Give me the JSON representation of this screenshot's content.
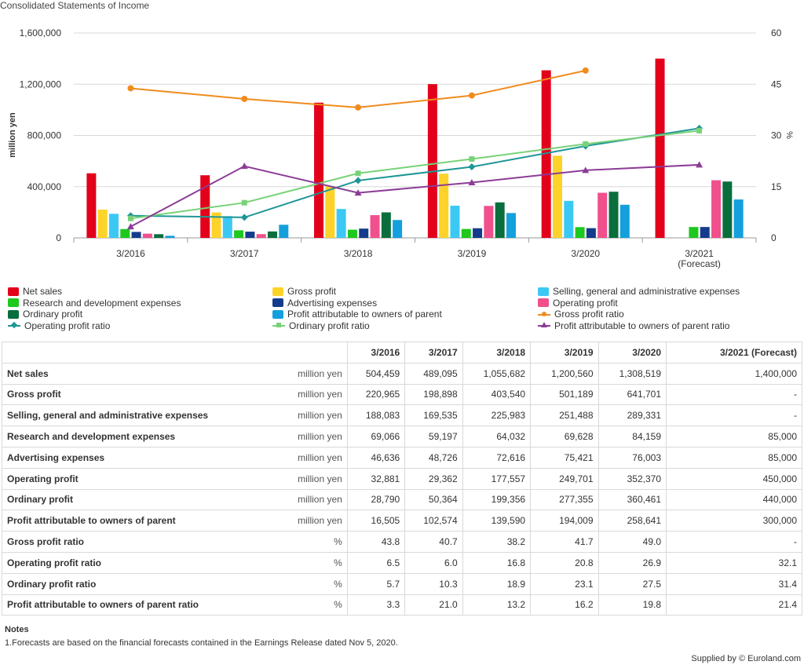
{
  "title": "Consolidated Statements of Income",
  "chart_data": {
    "type": "bar",
    "categories": [
      "3/2016",
      "3/2017",
      "3/2018",
      "3/2019",
      "3/2020",
      "3/2021 (Forecast)"
    ],
    "ylabel": "million yen",
    "y2label": "%",
    "ylim": [
      0,
      1600000
    ],
    "y2lim": [
      0,
      60
    ],
    "yticks": [
      "0",
      "400,000",
      "800,000",
      "1,200,000",
      "1,600,000"
    ],
    "y2ticks": [
      "0",
      "15",
      "30",
      "45",
      "60"
    ],
    "grid": true,
    "legend_position": "bottom",
    "bar_series": [
      {
        "name": "Net sales",
        "color": "#e3001b",
        "values": [
          504459,
          489095,
          1055682,
          1200560,
          1308519,
          1400000
        ]
      },
      {
        "name": "Gross profit",
        "color": "#fdd32a",
        "values": [
          220965,
          198898,
          403540,
          501189,
          641701,
          null
        ]
      },
      {
        "name": "Selling, general and administrative expenses",
        "color": "#3cc8f5",
        "values": [
          188083,
          169535,
          225983,
          251488,
          289331,
          null
        ]
      },
      {
        "name": "Research and development expenses",
        "color": "#1ec81e",
        "values": [
          69066,
          59197,
          64032,
          69628,
          84159,
          85000
        ]
      },
      {
        "name": "Advertising expenses",
        "color": "#143c8c",
        "values": [
          46636,
          48726,
          72616,
          75421,
          76003,
          85000
        ]
      },
      {
        "name": "Operating profit",
        "color": "#f0508c",
        "values": [
          32881,
          29362,
          177557,
          249701,
          352370,
          450000
        ]
      },
      {
        "name": "Ordinary profit",
        "color": "#0a6e3c",
        "values": [
          28790,
          50364,
          199356,
          277355,
          360461,
          440000
        ]
      },
      {
        "name": "Profit attributable to owners of parent",
        "color": "#14a0dc",
        "values": [
          16505,
          102574,
          139590,
          194009,
          258641,
          300000
        ]
      }
    ],
    "line_series": [
      {
        "name": "Gross profit ratio",
        "color": "#f08c1e",
        "marker": "circle",
        "values": [
          43.8,
          40.7,
          38.2,
          41.7,
          49.0,
          null
        ]
      },
      {
        "name": "Operating profit ratio",
        "color": "#1e9696",
        "marker": "diamond",
        "values": [
          6.5,
          6.0,
          16.8,
          20.8,
          26.9,
          32.1
        ]
      },
      {
        "name": "Ordinary profit ratio",
        "color": "#78d278",
        "marker": "square",
        "values": [
          5.7,
          10.3,
          18.9,
          23.1,
          27.5,
          31.4
        ]
      },
      {
        "name": "Profit attributable to owners of parent ratio",
        "color": "#8c3c96",
        "marker": "triangle",
        "values": [
          3.3,
          21.0,
          13.2,
          16.2,
          19.8,
          21.4
        ]
      }
    ]
  },
  "legend": [
    "Net sales",
    "Gross profit",
    "Selling, general and administrative expenses",
    "Research and development expenses",
    "Advertising expenses",
    "Operating profit",
    "Ordinary profit",
    "Profit attributable to owners of parent",
    "Gross profit ratio",
    "Operating profit ratio",
    "Ordinary profit ratio",
    "Profit attributable to owners of parent ratio"
  ],
  "table": {
    "headers": [
      "3/2016",
      "3/2017",
      "3/2018",
      "3/2019",
      "3/2020",
      "3/2021 (Forecast)"
    ],
    "rows": [
      {
        "label": "Net sales",
        "unit": "million yen",
        "values": [
          "504,459",
          "489,095",
          "1,055,682",
          "1,200,560",
          "1,308,519",
          "1,400,000"
        ]
      },
      {
        "label": "Gross profit",
        "unit": "million yen",
        "values": [
          "220,965",
          "198,898",
          "403,540",
          "501,189",
          "641,701",
          "-"
        ]
      },
      {
        "label": "Selling, general and administrative expenses",
        "unit": "million yen",
        "values": [
          "188,083",
          "169,535",
          "225,983",
          "251,488",
          "289,331",
          "-"
        ]
      },
      {
        "label": "Research and development expenses",
        "unit": "million yen",
        "values": [
          "69,066",
          "59,197",
          "64,032",
          "69,628",
          "84,159",
          "85,000"
        ]
      },
      {
        "label": "Advertising expenses",
        "unit": "million yen",
        "values": [
          "46,636",
          "48,726",
          "72,616",
          "75,421",
          "76,003",
          "85,000"
        ]
      },
      {
        "label": "Operating profit",
        "unit": "million yen",
        "values": [
          "32,881",
          "29,362",
          "177,557",
          "249,701",
          "352,370",
          "450,000"
        ]
      },
      {
        "label": "Ordinary profit",
        "unit": "million yen",
        "values": [
          "28,790",
          "50,364",
          "199,356",
          "277,355",
          "360,461",
          "440,000"
        ]
      },
      {
        "label": "Profit attributable to owners of parent",
        "unit": "million yen",
        "values": [
          "16,505",
          "102,574",
          "139,590",
          "194,009",
          "258,641",
          "300,000"
        ]
      },
      {
        "label": "Gross profit ratio",
        "unit": "%",
        "values": [
          "43.8",
          "40.7",
          "38.2",
          "41.7",
          "49.0",
          "-"
        ]
      },
      {
        "label": "Operating profit ratio",
        "unit": "%",
        "values": [
          "6.5",
          "6.0",
          "16.8",
          "20.8",
          "26.9",
          "32.1"
        ]
      },
      {
        "label": "Ordinary profit ratio",
        "unit": "%",
        "values": [
          "5.7",
          "10.3",
          "18.9",
          "23.1",
          "27.5",
          "31.4"
        ]
      },
      {
        "label": "Profit attributable to owners of parent ratio",
        "unit": "%",
        "values": [
          "3.3",
          "21.0",
          "13.2",
          "16.2",
          "19.8",
          "21.4"
        ]
      }
    ]
  },
  "notes": {
    "title": "Notes",
    "items": [
      "1.Forecasts are based on the financial forecasts contained in the Earnings Release dated Nov 5, 2020."
    ]
  },
  "footer": "Supplied by © Euroland.com"
}
